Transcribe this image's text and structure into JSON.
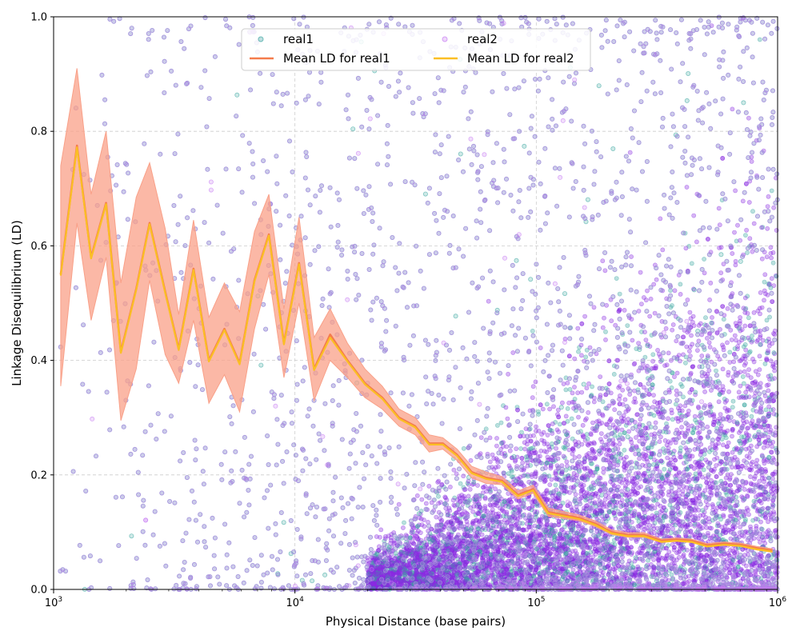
{
  "chart_data": {
    "type": "scatter",
    "xlabel": "Physical Distance (base pairs)",
    "ylabel": "Linkage Disequilibrium (LD)",
    "xscale": "log",
    "xlim": [
      1000,
      1000000
    ],
    "ylim": [
      0.0,
      1.0
    ],
    "grid": true,
    "legend_position": "top-center",
    "x_ticks": [
      {
        "value": 1000,
        "base": "10",
        "exp": "3"
      },
      {
        "value": 10000,
        "base": "10",
        "exp": "4"
      },
      {
        "value": 100000,
        "base": "10",
        "exp": "5"
      },
      {
        "value": 1000000,
        "base": "10",
        "exp": "6"
      }
    ],
    "y_ticks": [
      {
        "value": 0.0,
        "label": "0.0"
      },
      {
        "value": 0.2,
        "label": "0.2"
      },
      {
        "value": 0.4,
        "label": "0.4"
      },
      {
        "value": 0.6,
        "label": "0.6"
      },
      {
        "value": 0.8,
        "label": "0.8"
      },
      {
        "value": 1.0,
        "label": "1.0"
      }
    ],
    "legend": [
      {
        "label": "real1",
        "kind": "marker",
        "color": "#3aa6a0"
      },
      {
        "label": "real2",
        "kind": "marker",
        "color": "#c77cf2"
      },
      {
        "label": "Mean LD for real1",
        "kind": "line",
        "color": "#f47c4c"
      },
      {
        "label": "Mean LD for real2",
        "kind": "line",
        "color": "#fbbf24"
      }
    ],
    "scatter_colors": {
      "real1": "#3aa6a0",
      "real2": "#c77cf2",
      "dense": "#8a2be2"
    },
    "series": [
      {
        "name": "Mean LD for real1",
        "color": "#f47c4c",
        "band_color": "#f9a088",
        "x": [
          1070,
          1250,
          1430,
          1650,
          1900,
          2200,
          2500,
          2900,
          3300,
          3800,
          4400,
          5100,
          5900,
          6800,
          7800,
          9000,
          10400,
          12000,
          14000,
          16500,
          19500,
          23000,
          27000,
          31500,
          36000,
          41000,
          47000,
          54000,
          62000,
          72000,
          84000,
          97000,
          112000,
          130000,
          150000,
          175000,
          205000,
          240000,
          280000,
          330000,
          380000,
          440000,
          510000,
          600000,
          700000,
          820000,
          950000
        ],
        "values": [
          0.55,
          0.775,
          0.58,
          0.675,
          0.415,
          0.525,
          0.64,
          0.52,
          0.42,
          0.56,
          0.4,
          0.455,
          0.395,
          0.54,
          0.62,
          0.43,
          0.57,
          0.385,
          0.445,
          0.4,
          0.36,
          0.335,
          0.3,
          0.285,
          0.255,
          0.255,
          0.235,
          0.205,
          0.195,
          0.19,
          0.165,
          0.175,
          0.135,
          0.13,
          0.125,
          0.115,
          0.1,
          0.095,
          0.095,
          0.085,
          0.087,
          0.085,
          0.077,
          0.08,
          0.078,
          0.072,
          0.068
        ],
        "lower": [
          0.355,
          0.64,
          0.47,
          0.58,
          0.295,
          0.385,
          0.54,
          0.41,
          0.36,
          0.47,
          0.325,
          0.375,
          0.31,
          0.455,
          0.55,
          0.37,
          0.5,
          0.33,
          0.4,
          0.37,
          0.335,
          0.315,
          0.285,
          0.27,
          0.24,
          0.245,
          0.225,
          0.195,
          0.185,
          0.183,
          0.158,
          0.168,
          0.128,
          0.124,
          0.12,
          0.11,
          0.096,
          0.091,
          0.091,
          0.082,
          0.084,
          0.082,
          0.074,
          0.077,
          0.075,
          0.069,
          0.065
        ],
        "upper": [
          0.74,
          0.91,
          0.69,
          0.8,
          0.535,
          0.685,
          0.745,
          0.63,
          0.48,
          0.645,
          0.475,
          0.535,
          0.485,
          0.625,
          0.69,
          0.49,
          0.65,
          0.44,
          0.49,
          0.43,
          0.385,
          0.355,
          0.315,
          0.3,
          0.27,
          0.265,
          0.245,
          0.215,
          0.205,
          0.197,
          0.172,
          0.182,
          0.142,
          0.136,
          0.13,
          0.12,
          0.104,
          0.099,
          0.099,
          0.088,
          0.09,
          0.088,
          0.08,
          0.083,
          0.081,
          0.075,
          0.071
        ]
      },
      {
        "name": "Mean LD for real2",
        "color": "#fbbf24",
        "x": [
          1070,
          1250,
          1430,
          1650,
          1900,
          2200,
          2500,
          2900,
          3300,
          3800,
          4400,
          5100,
          5900,
          6800,
          7800,
          9000,
          10400,
          12000,
          14000,
          16500,
          19500,
          23000,
          27000,
          31500,
          36000,
          41000,
          47000,
          54000,
          62000,
          72000,
          84000,
          97000,
          112000,
          130000,
          150000,
          175000,
          205000,
          240000,
          280000,
          330000,
          380000,
          440000,
          510000,
          600000,
          700000,
          820000,
          950000
        ],
        "values": [
          0.548,
          0.772,
          0.578,
          0.673,
          0.413,
          0.523,
          0.638,
          0.518,
          0.418,
          0.558,
          0.398,
          0.453,
          0.393,
          0.538,
          0.618,
          0.428,
          0.568,
          0.383,
          0.44,
          0.398,
          0.358,
          0.333,
          0.298,
          0.283,
          0.253,
          0.253,
          0.233,
          0.203,
          0.193,
          0.188,
          0.163,
          0.173,
          0.133,
          0.128,
          0.123,
          0.113,
          0.098,
          0.093,
          0.093,
          0.083,
          0.085,
          0.083,
          0.075,
          0.078,
          0.076,
          0.07,
          0.066
        ]
      }
    ]
  }
}
